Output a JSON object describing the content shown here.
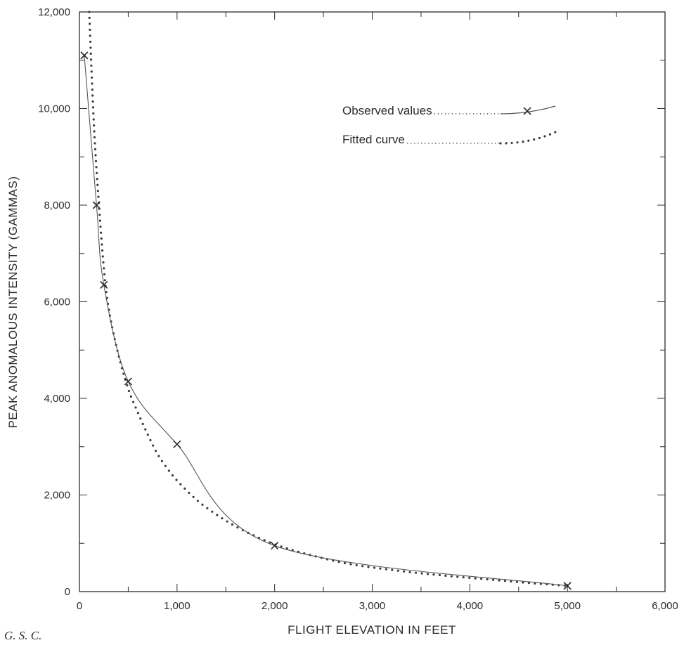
{
  "colors": {
    "ink": "#2b2b2b",
    "observed_line": "#555555",
    "fitted_dots": "#3a3a3a",
    "background": "#ffffff"
  },
  "credit": "G. S. C.",
  "chart_data": {
    "type": "line",
    "title": "",
    "xlabel": "FLIGHT ELEVATION IN FEET",
    "ylabel": "PEAK ANOMALOUS INTENSITY (GAMMAS)",
    "xlim": [
      0,
      6000
    ],
    "ylim": [
      0,
      12000
    ],
    "x_ticks": [
      {
        "value": 0,
        "label": "0"
      },
      {
        "value": 1000,
        "label": "1,000"
      },
      {
        "value": 2000,
        "label": "2,000"
      },
      {
        "value": 3000,
        "label": "3,000"
      },
      {
        "value": 4000,
        "label": "4,000"
      },
      {
        "value": 5000,
        "label": "5,000"
      },
      {
        "value": 6000,
        "label": "6,000"
      }
    ],
    "y_ticks": [
      {
        "value": 0,
        "label": "0"
      },
      {
        "value": 2000,
        "label": "2,000"
      },
      {
        "value": 4000,
        "label": "4,000"
      },
      {
        "value": 6000,
        "label": "6,000"
      },
      {
        "value": 8000,
        "label": "8,000"
      },
      {
        "value": 10000,
        "label": "10,000"
      },
      {
        "value": 12000,
        "label": "12,000"
      }
    ],
    "grid": false,
    "legend": {
      "placement": "top-right",
      "entries": [
        {
          "label": "Observed values",
          "style": "solid-line-with-x-marker"
        },
        {
          "label": "Fitted curve",
          "style": "dotted"
        }
      ]
    },
    "series": [
      {
        "name": "Observed values",
        "style": "solid-line-with-x-marker",
        "x": [
          50,
          175,
          250,
          500,
          1000,
          2000,
          5000
        ],
        "y": [
          11100,
          8000,
          6350,
          4350,
          3050,
          950,
          120
        ]
      },
      {
        "name": "Fitted curve",
        "style": "dotted",
        "x": [
          100,
          150,
          200,
          250,
          300,
          400,
          500,
          600,
          700,
          800,
          900,
          1000,
          1200,
          1400,
          1600,
          1800,
          2000,
          2200,
          2400,
          2600,
          2800,
          3000,
          3200,
          3400,
          3600,
          3800,
          4000,
          4200,
          4400,
          4600,
          4800,
          5000
        ],
        "y": [
          12000,
          9600,
          8000,
          6700,
          5850,
          4900,
          4200,
          3700,
          3250,
          2850,
          2550,
          2300,
          1900,
          1600,
          1350,
          1150,
          980,
          850,
          740,
          640,
          560,
          500,
          450,
          400,
          360,
          320,
          285,
          250,
          215,
          180,
          150,
          120
        ]
      }
    ]
  }
}
